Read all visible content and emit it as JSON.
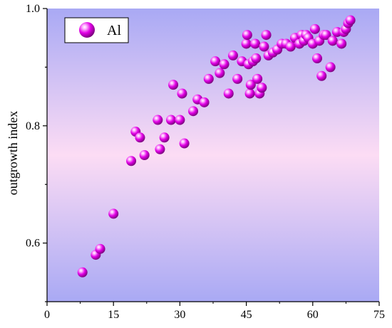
{
  "chart_data": {
    "type": "scatter",
    "title": "",
    "xlabel": "",
    "ylabel": "outgrowth index",
    "xlim": [
      0,
      75
    ],
    "ylim": [
      0.5,
      1.0
    ],
    "xticks": [
      0,
      15,
      30,
      45,
      60,
      75
    ],
    "yticks": [
      0.6,
      0.8,
      1.0
    ],
    "ytick_labels": [
      "0.6",
      "0.8",
      "1.0"
    ],
    "grid": false,
    "legend_position": "top-left",
    "background": "gradient-purple-pink",
    "series": [
      {
        "name": "Al",
        "color": "#e200e6",
        "points": [
          [
            8,
            0.55
          ],
          [
            11,
            0.58
          ],
          [
            12,
            0.59
          ],
          [
            15,
            0.65
          ],
          [
            19,
            0.74
          ],
          [
            20,
            0.79
          ],
          [
            21,
            0.78
          ],
          [
            22,
            0.75
          ],
          [
            25,
            0.81
          ],
          [
            25.5,
            0.76
          ],
          [
            26.5,
            0.78
          ],
          [
            28,
            0.81
          ],
          [
            28.5,
            0.87
          ],
          [
            30,
            0.81
          ],
          [
            30.5,
            0.855
          ],
          [
            31,
            0.77
          ],
          [
            33,
            0.825
          ],
          [
            34,
            0.845
          ],
          [
            35.5,
            0.84
          ],
          [
            36.5,
            0.88
          ],
          [
            38,
            0.91
          ],
          [
            39,
            0.89
          ],
          [
            40,
            0.905
          ],
          [
            41,
            0.855
          ],
          [
            42,
            0.92
          ],
          [
            43,
            0.88
          ],
          [
            44,
            0.91
          ],
          [
            45,
            0.94
          ],
          [
            45.2,
            0.955
          ],
          [
            45.5,
            0.905
          ],
          [
            45.8,
            0.855
          ],
          [
            46,
            0.87
          ],
          [
            46.5,
            0.91
          ],
          [
            47,
            0.94
          ],
          [
            47.2,
            0.915
          ],
          [
            47.5,
            0.88
          ],
          [
            48,
            0.855
          ],
          [
            48.5,
            0.865
          ],
          [
            49,
            0.935
          ],
          [
            49.5,
            0.955
          ],
          [
            50,
            0.92
          ],
          [
            51,
            0.925
          ],
          [
            52,
            0.93
          ],
          [
            53,
            0.94
          ],
          [
            54,
            0.94
          ],
          [
            55,
            0.935
          ],
          [
            56,
            0.95
          ],
          [
            57,
            0.94
          ],
          [
            57.5,
            0.955
          ],
          [
            58,
            0.945
          ],
          [
            58.5,
            0.955
          ],
          [
            59,
            0.95
          ],
          [
            60,
            0.94
          ],
          [
            60.5,
            0.965
          ],
          [
            61,
            0.915
          ],
          [
            61.5,
            0.945
          ],
          [
            62,
            0.885
          ],
          [
            62.5,
            0.955
          ],
          [
            63,
            0.955
          ],
          [
            64,
            0.9
          ],
          [
            64.5,
            0.945
          ],
          [
            65.5,
            0.96
          ],
          [
            66.5,
            0.94
          ],
          [
            67,
            0.96
          ],
          [
            67.5,
            0.965
          ],
          [
            68,
            0.975
          ],
          [
            68.5,
            0.98
          ]
        ]
      }
    ]
  }
}
